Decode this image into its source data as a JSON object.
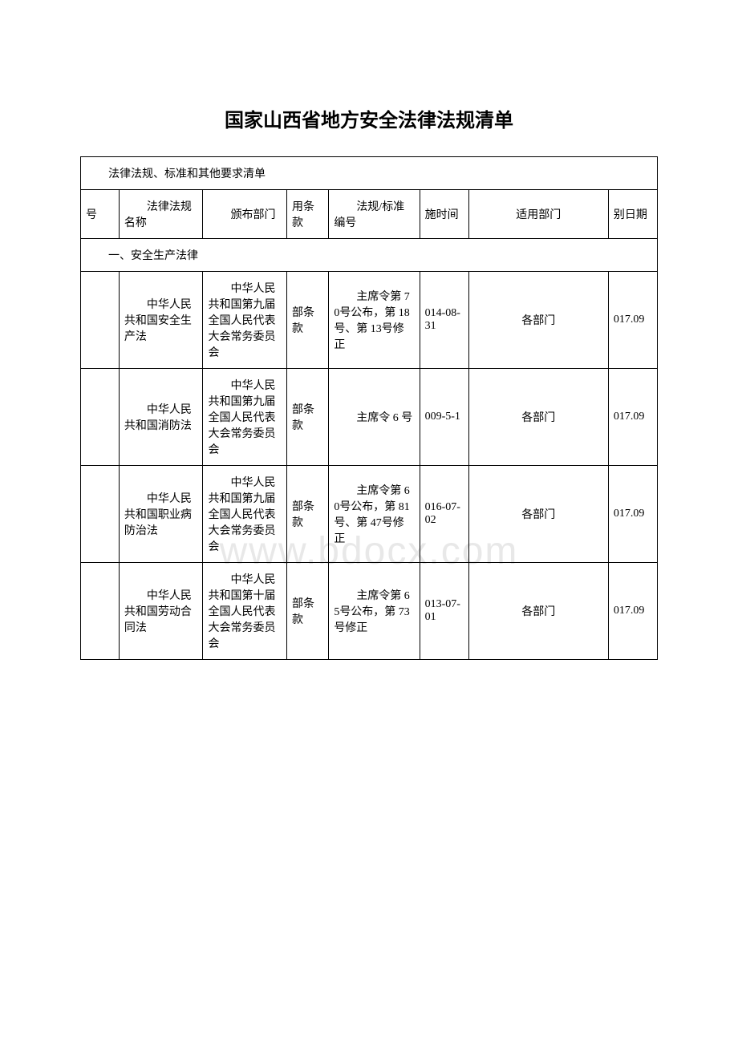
{
  "title": "国家山西省地方安全法律法规清单",
  "table_caption": "法律法规、标准和其他要求清单",
  "headers": {
    "col1": "号",
    "col2": "法律法规名称",
    "col3": "颁布部门",
    "col4": "用条款",
    "col5": "法规/标准编号",
    "col6": "施时间",
    "col7": "适用部门",
    "col8": "别日期"
  },
  "section1_header": "一、安全生产法律",
  "rows": [
    {
      "name": "中华人民共和国安全生产法",
      "issuer": "中华人民共和国第九届全国人民代表大会常务委员会",
      "clause": "部条款",
      "regulation_no": "主席令第 70号公布，第 18 号、第 13号修正",
      "date": "014-08-31",
      "dept": "各部门",
      "other_date": "017.09"
    },
    {
      "name": "中华人民共和国消防法",
      "issuer": "中华人民共和国第九届全国人民代表大会常务委员会",
      "clause": "部条款",
      "regulation_no": "主席令 6 号",
      "date": "009-5-1",
      "dept": "各部门",
      "other_date": "017.09"
    },
    {
      "name": "中华人民共和国职业病防治法",
      "issuer": "中华人民共和国第九届全国人民代表大会常务委员会",
      "clause": "部条款",
      "regulation_no": "主席令第 60号公布，第 81 号、第 47号修正",
      "date": "016-07-02",
      "dept": "各部门",
      "other_date": "017.09"
    },
    {
      "name": "中华人民共和国劳动合同法",
      "issuer": "中华人民共和国第十届全国人民代表大会常务委员会",
      "clause": "部条款",
      "regulation_no": "主席令第 65号公布，第 73 号修正",
      "date": "013-07-01",
      "dept": "各部门",
      "other_date": "017.09"
    }
  ],
  "watermark": "www.bdocx.com",
  "colors": {
    "background": "#ffffff",
    "text": "#000000",
    "border": "#000000",
    "watermark": "#e8e8e8"
  }
}
